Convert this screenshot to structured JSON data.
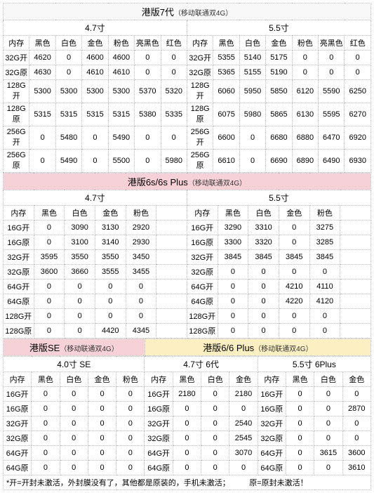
{
  "section7": {
    "title": "港版7代",
    "subtitle": "（移动联通双4G）",
    "sizes": [
      "4.7寸",
      "5.5寸"
    ],
    "cols47": [
      "内存",
      "黑色",
      "白色",
      "金色",
      "粉色",
      "亮黑色",
      "红色"
    ],
    "cols55": [
      "内存",
      "黑色",
      "白色",
      "金色",
      "粉色",
      "亮黑色",
      "红色"
    ],
    "rows": [
      {
        "m": "32G开",
        "a": [
          "4620",
          "0",
          "4600",
          "4600",
          "0",
          "0"
        ],
        "b": [
          "5355",
          "5140",
          "5175",
          "0",
          "0",
          "0"
        ]
      },
      {
        "m": "32G原",
        "a": [
          "4630",
          "0",
          "4610",
          "4610",
          "0",
          "0"
        ],
        "b": [
          "5365",
          "5155",
          "5190",
          "0",
          "0",
          "0"
        ]
      },
      {
        "m": "128G开",
        "a": [
          "5300",
          "5300",
          "5300",
          "5300",
          "5370",
          "5320"
        ],
        "b": [
          "6060",
          "5950",
          "5850",
          "6120",
          "5590",
          "6250"
        ]
      },
      {
        "m": "128G原",
        "a": [
          "5315",
          "5315",
          "5315",
          "5315",
          "5380",
          "5335"
        ],
        "b": [
          "6075",
          "5980",
          "5865",
          "6130",
          "5595",
          "6270"
        ]
      },
      {
        "m": "256G开",
        "a": [
          "0",
          "5480",
          "0",
          "5490",
          "0",
          "0"
        ],
        "b": [
          "6600",
          "0",
          "6680",
          "6880",
          "6470",
          "6920"
        ]
      },
      {
        "m": "256G原",
        "a": [
          "0",
          "5490",
          "0",
          "5500",
          "0",
          "5980"
        ],
        "b": [
          "6610",
          "0",
          "6690",
          "6890",
          "6490",
          "6930"
        ]
      }
    ]
  },
  "section6s": {
    "title": "港版6s/6s Plus",
    "subtitle": "（移动联通双4G）",
    "sizes": [
      "4.7寸",
      "5.5寸"
    ],
    "cols": [
      "内存",
      "黑色",
      "白色",
      "金色",
      "粉色"
    ],
    "rows": [
      {
        "m": "16G开",
        "a": [
          "0",
          "3090",
          "3130",
          "2920"
        ],
        "b": [
          "3290",
          "3310",
          "0",
          "3275"
        ]
      },
      {
        "m": "16G原",
        "a": [
          "0",
          "3100",
          "3140",
          "2930"
        ],
        "b": [
          "3300",
          "3320",
          "0",
          "3285"
        ]
      },
      {
        "m": "32G开",
        "a": [
          "3595",
          "3550",
          "3550",
          "3450"
        ],
        "b": [
          "3845",
          "3845",
          "3845",
          "3845"
        ]
      },
      {
        "m": "32G原",
        "a": [
          "3600",
          "3660",
          "3555",
          "3455"
        ],
        "b": [
          "0",
          "0",
          "0",
          "0"
        ]
      },
      {
        "m": "64G开",
        "a": [
          "0",
          "0",
          "0",
          "0"
        ],
        "b": [
          "0",
          "0",
          "4210",
          "4110"
        ]
      },
      {
        "m": "64G原",
        "a": [
          "0",
          "0",
          "0",
          "0"
        ],
        "b": [
          "0",
          "0",
          "4220",
          "4120"
        ]
      },
      {
        "m": "128G开",
        "a": [
          "0",
          "0",
          "0",
          "0"
        ],
        "b": [
          "0",
          "0",
          "0",
          "0"
        ]
      },
      {
        "m": "128G原",
        "a": [
          "0",
          "0",
          "4420",
          "4345"
        ],
        "b": [
          "0",
          "0",
          "0",
          "0"
        ]
      }
    ]
  },
  "sectionSE": {
    "title": "港版SE",
    "subtitle": "（移动联通双4G）"
  },
  "section6": {
    "title": "港版6/6 Plus",
    "subtitle": "（移动联通双4G）"
  },
  "bottom": {
    "sizeSE": "4.0寸 SE",
    "size6": "4.7寸 6代",
    "size6p": "5.5寸 6Plus",
    "colsSE": [
      "内存",
      "黑色",
      "白色",
      "金色",
      "粉色"
    ],
    "cols6": [
      "内存",
      "黑色",
      "白色",
      "金色"
    ],
    "cols6p": [
      "内存",
      "黑色",
      "白色",
      "金色"
    ],
    "rows": [
      {
        "m": "16G开",
        "se": [
          "0",
          "0",
          "0",
          "0"
        ],
        "s6": [
          "2180",
          "0",
          "2180"
        ],
        "p6": [
          "0",
          "0",
          "0"
        ]
      },
      {
        "m": "16G原",
        "se": [
          "0",
          "0",
          "0",
          "0"
        ],
        "s6": [
          "0",
          "0",
          "0"
        ],
        "p6": [
          "0",
          "0",
          "2870"
        ]
      },
      {
        "m": "32G开",
        "se": [
          "0",
          "0",
          "0",
          "0"
        ],
        "s6": [
          "0",
          "0",
          "2540"
        ],
        "p6": [
          "0",
          "0",
          "0"
        ]
      },
      {
        "m": "32G原",
        "se": [
          "0",
          "0",
          "0",
          "0"
        ],
        "s6": [
          "0",
          "0",
          "2545"
        ],
        "p6": [
          "0",
          "0",
          "0"
        ]
      },
      {
        "m": "64G开",
        "se": [
          "0",
          "0",
          "0",
          "0"
        ],
        "s6": [
          "0",
          "0",
          "3070"
        ],
        "p6": [
          "0",
          "3615",
          "3600"
        ]
      },
      {
        "m": "64G原",
        "se": [
          "0",
          "0",
          "0",
          "0"
        ],
        "s6": [
          "0",
          "0",
          "0"
        ],
        "p6": [
          "0",
          "0",
          "3610"
        ]
      }
    ]
  },
  "footer": "*开=开封未激活，外封膜没有了，其他都是原装的，手机未激活；　　　原=原封未激活！"
}
